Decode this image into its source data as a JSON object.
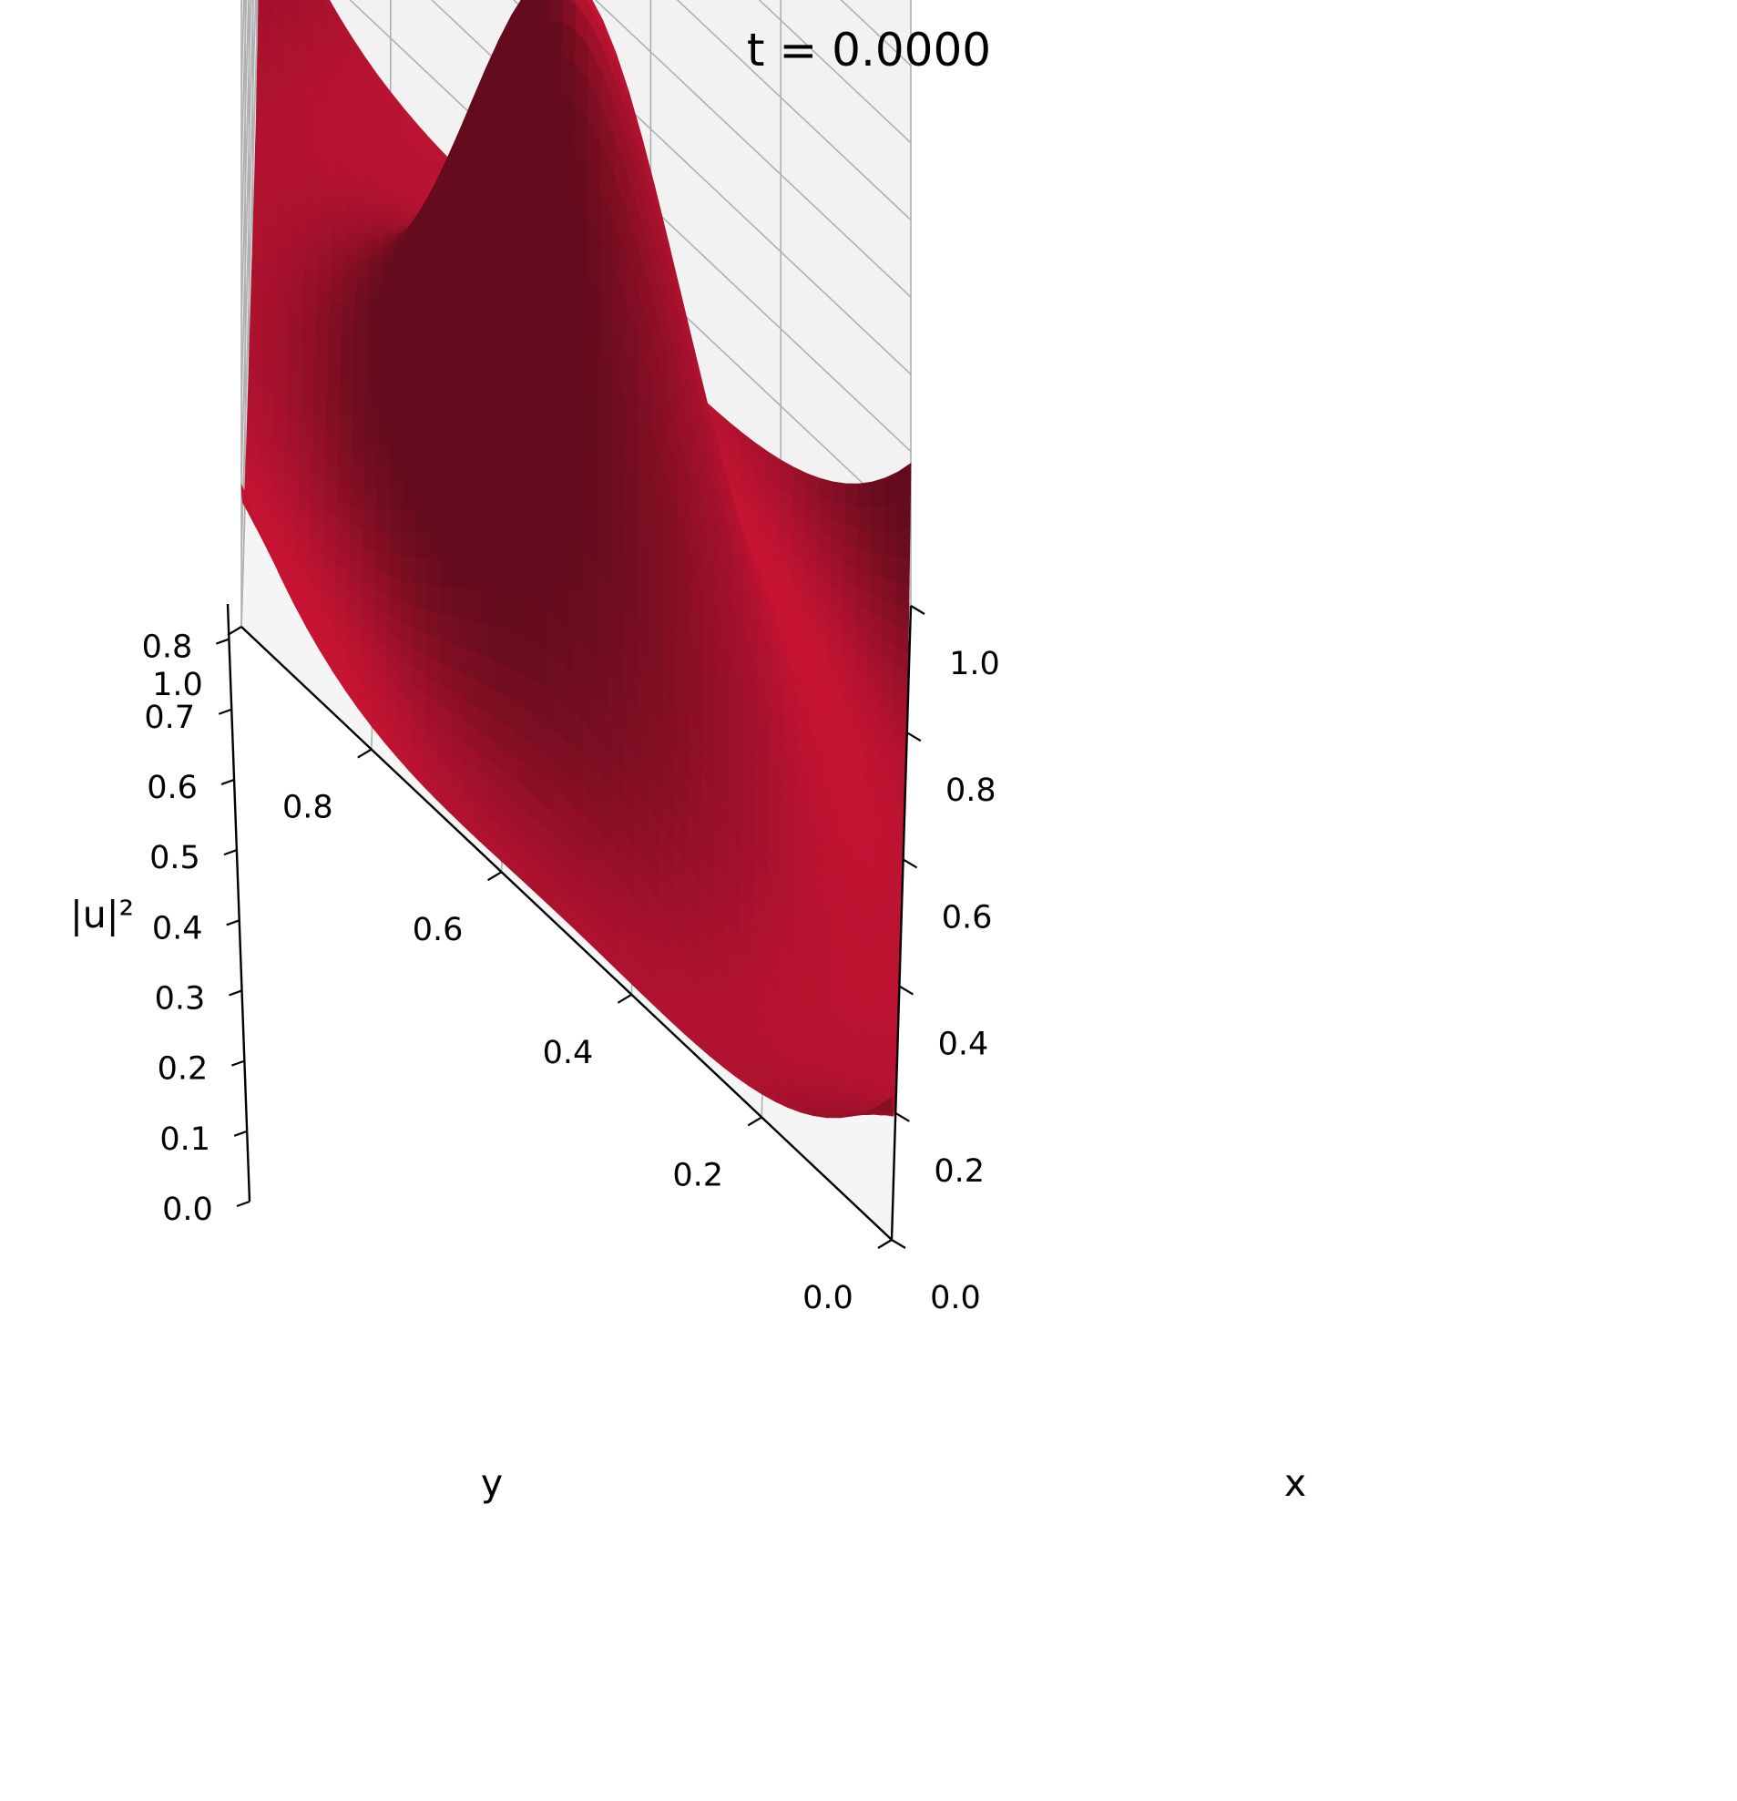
{
  "chart_data": {
    "type": "surface3d",
    "title": "t = 0.0000",
    "xlabel": "x",
    "ylabel": "y",
    "zlabel": "|u|²",
    "xlim": [
      0,
      1
    ],
    "ylim": [
      0,
      1
    ],
    "zlim": [
      0,
      0.85
    ],
    "x_ticks": [
      "0.0",
      "0.2",
      "0.4",
      "0.6",
      "0.8",
      "1.0"
    ],
    "y_ticks": [
      "0.0",
      "0.2",
      "0.4",
      "0.6",
      "0.8",
      "1.0"
    ],
    "z_ticks": [
      "0.0",
      "0.1",
      "0.2",
      "0.3",
      "0.4",
      "0.5",
      "0.6",
      "0.7",
      "0.8"
    ],
    "surface": {
      "function": "gaussian_peak_with_corner_rise",
      "peak": {
        "x": 0.5,
        "y": 0.5,
        "value": 0.81
      },
      "corner_value": 0.18,
      "edge_midpoint_value": 0.03,
      "grid_resolution": 50
    },
    "grid": true,
    "colors": {
      "surface": "#c8102e",
      "pane": "#f2f2f2",
      "grid": "#b0b0b0"
    }
  }
}
